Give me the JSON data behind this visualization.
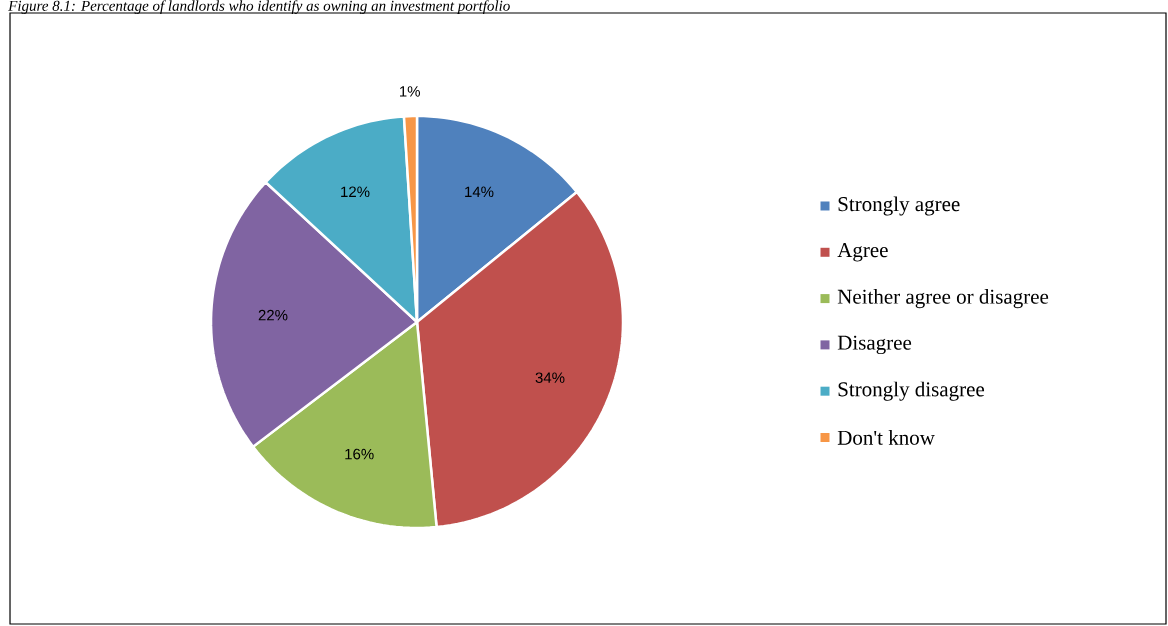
{
  "chart_data": {
    "type": "pie",
    "title": "Figure 8.1: Percentage of landlords who identify as owning an investment portfolio",
    "categories": [
      "Strongly agree",
      "Agree",
      "Neither agree or disagree",
      "Disagree",
      "Strongly disagree",
      "Don't know"
    ],
    "values": [
      14,
      34,
      16,
      22,
      12,
      1
    ],
    "colors": [
      "#4f81bd",
      "#c0504d",
      "#9bbb59",
      "#8064a2",
      "#4bacc6",
      "#f79646"
    ],
    "value_labels": [
      "14%",
      "34%",
      "16%",
      "22%",
      "12%",
      "1%"
    ],
    "legend": "right"
  }
}
